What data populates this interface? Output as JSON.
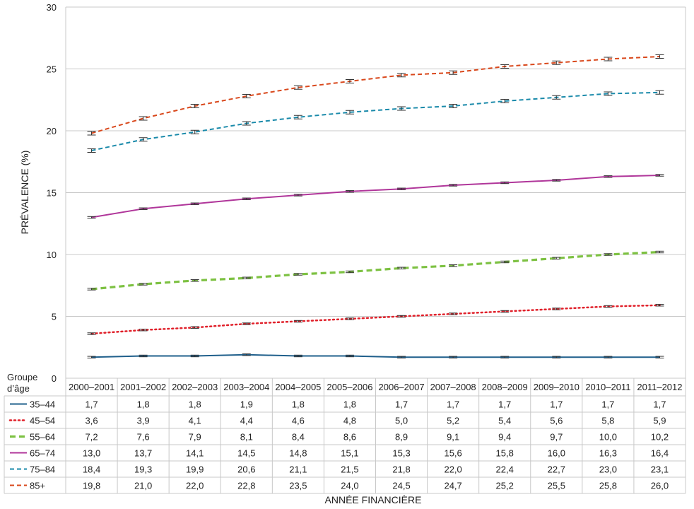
{
  "chart_data": {
    "type": "line",
    "ylabel": "PRÉVALENCE (%)",
    "xlabel": "ANNÉE FINANCIÈRE",
    "ylim": [
      0,
      30
    ],
    "yticks": [
      0,
      5,
      10,
      15,
      20,
      25,
      30
    ],
    "grid": true,
    "error_bars": true,
    "table_header": "Groupe d’âge",
    "categories": [
      "2000–2001",
      "2001–2002",
      "2002–2003",
      "2003–2004",
      "2004–2005",
      "2005–2006",
      "2006–2007",
      "2007–2008",
      "2008–2009",
      "2009–2010",
      "2010–2011",
      "2011–2012"
    ],
    "series": [
      {
        "name": "35–44",
        "color": "#1f5f8b",
        "style": "solid",
        "values": [
          1.7,
          1.8,
          1.8,
          1.9,
          1.8,
          1.8,
          1.7,
          1.7,
          1.7,
          1.7,
          1.7,
          1.7
        ],
        "labels": [
          "1,7",
          "1,8",
          "1,8",
          "1,9",
          "1,8",
          "1,8",
          "1,7",
          "1,7",
          "1,7",
          "1,7",
          "1,7",
          "1,7"
        ]
      },
      {
        "name": "45–54",
        "color": "#e0202a",
        "style": "dotted",
        "values": [
          3.6,
          3.9,
          4.1,
          4.4,
          4.6,
          4.8,
          5.0,
          5.2,
          5.4,
          5.6,
          5.8,
          5.9
        ],
        "labels": [
          "3,6",
          "3,9",
          "4,1",
          "4,4",
          "4,6",
          "4,8",
          "5,0",
          "5,2",
          "5,4",
          "5,6",
          "5,8",
          "5,9"
        ]
      },
      {
        "name": "55–64",
        "color": "#7dc142",
        "style": "dashed-thick",
        "values": [
          7.2,
          7.6,
          7.9,
          8.1,
          8.4,
          8.6,
          8.9,
          9.1,
          9.4,
          9.7,
          10.0,
          10.2
        ],
        "labels": [
          "7,2",
          "7,6",
          "7,9",
          "8,1",
          "8,4",
          "8,6",
          "8,9",
          "9,1",
          "9,4",
          "9,7",
          "10,0",
          "10,2"
        ]
      },
      {
        "name": "65–74",
        "color": "#b0369a",
        "style": "solid",
        "values": [
          13.0,
          13.7,
          14.1,
          14.5,
          14.8,
          15.1,
          15.3,
          15.6,
          15.8,
          16.0,
          16.3,
          16.4
        ],
        "labels": [
          "13,0",
          "13,7",
          "14,1",
          "14,5",
          "14,8",
          "15,1",
          "15,3",
          "15,6",
          "15,8",
          "16,0",
          "16,3",
          "16,4"
        ]
      },
      {
        "name": "75–84",
        "color": "#1a8aaa",
        "style": "dashed",
        "values": [
          18.4,
          19.3,
          19.9,
          20.6,
          21.1,
          21.5,
          21.8,
          22.0,
          22.4,
          22.7,
          23.0,
          23.1
        ],
        "labels": [
          "18,4",
          "19,3",
          "19,9",
          "20,6",
          "21,1",
          "21,5",
          "21,8",
          "22,0",
          "22,4",
          "22,7",
          "23,0",
          "23,1"
        ]
      },
      {
        "name": "85+",
        "color": "#d9481c",
        "style": "dashed",
        "values": [
          19.8,
          21.0,
          22.0,
          22.8,
          23.5,
          24.0,
          24.5,
          24.7,
          25.2,
          25.5,
          25.8,
          26.0
        ],
        "labels": [
          "19,8",
          "21,0",
          "22,0",
          "22,8",
          "23,5",
          "24,0",
          "24,5",
          "24,7",
          "25,2",
          "25,5",
          "25,8",
          "26,0"
        ]
      }
    ]
  }
}
